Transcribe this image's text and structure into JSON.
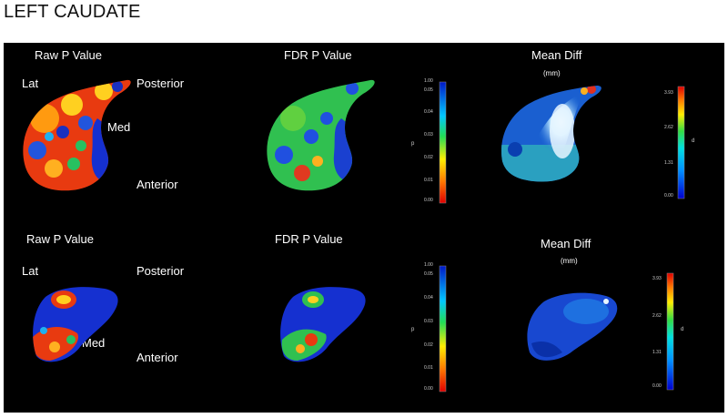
{
  "title": "LEFT CAUDATE",
  "colors": {
    "background": "#000000",
    "text": "#ffffff"
  },
  "rows": [
    {
      "panels": {
        "raw": {
          "title": "Raw P Value",
          "labels": {
            "lat": "Lat",
            "posterior": "Posterior",
            "med": "Med",
            "anterior": "Anterior"
          }
        },
        "fdr": {
          "title": "FDR P Value"
        },
        "mean": {
          "title": "Mean Diff",
          "unit": "(mm)"
        }
      },
      "p_colorbar": {
        "top": "1.00",
        "ticks": [
          "0.05",
          "0.04",
          "0.03",
          "0.02",
          "0.01",
          "0.00"
        ],
        "axis": "p"
      },
      "mm_colorbar": {
        "ticks": [
          "3.93",
          "2.62",
          "1.31",
          "0.00"
        ],
        "axis": "d"
      }
    },
    {
      "panels": {
        "raw": {
          "title": "Raw P Value",
          "labels": {
            "lat": "Lat",
            "posterior": "Posterior",
            "med": "Med",
            "anterior": "Anterior"
          }
        },
        "fdr": {
          "title": "FDR P Value"
        },
        "mean": {
          "title": "Mean Diff",
          "unit": "(mm)"
        }
      },
      "p_colorbar": {
        "top": "1.00",
        "ticks": [
          "0.05",
          "0.04",
          "0.03",
          "0.02",
          "0.01",
          "0.00"
        ],
        "axis": "p"
      },
      "mm_colorbar": {
        "ticks": [
          "3.93",
          "2.62",
          "1.31",
          "0.00"
        ],
        "axis": "d"
      }
    }
  ]
}
